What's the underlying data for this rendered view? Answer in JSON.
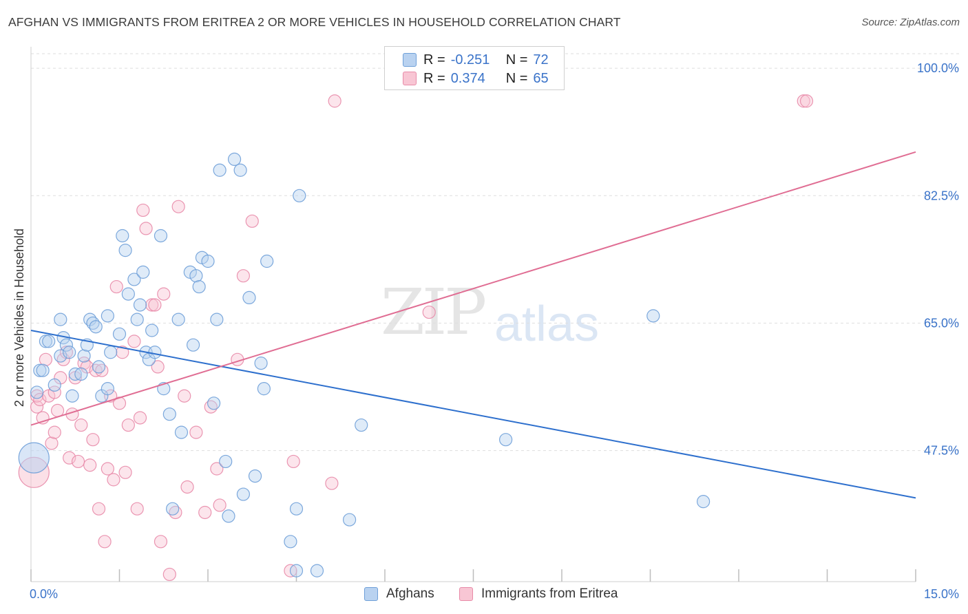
{
  "title": "AFGHAN VS IMMIGRANTS FROM ERITREA 2 OR MORE VEHICLES IN HOUSEHOLD CORRELATION CHART",
  "source": "Source: ZipAtlas.com",
  "watermark": {
    "zip": "ZIP",
    "atlas": "atlas"
  },
  "legend_top": {
    "rows": [
      {
        "r_label": "R =",
        "r_value": "-0.251",
        "n_label": "N =",
        "n_value": "72"
      },
      {
        "r_label": "R =",
        "r_value": "0.374",
        "n_label": "N =",
        "n_value": "65"
      }
    ]
  },
  "legend_bottom": {
    "series1": "Afghans",
    "series2": "Immigrants from Eritrea"
  },
  "colors": {
    "blue_fill": "#b9d2f0",
    "blue_stroke": "#6e9fd8",
    "blue_line": "#2d6fcd",
    "pink_fill": "#f8c6d4",
    "pink_stroke": "#e88aa8",
    "pink_line": "#e06d93",
    "tick_label": "#3a73c9",
    "grid": "#dedede"
  },
  "chart_data": {
    "type": "scatter",
    "title": "AFGHAN VS IMMIGRANTS FROM ERITREA 2 OR MORE VEHICLES IN HOUSEHOLD CORRELATION CHART",
    "xlabel": "",
    "ylabel": "2 or more Vehicles in Household",
    "xlim": [
      0,
      15
    ],
    "ylim": [
      29.5,
      102
    ],
    "x_tick_labels": [
      "0.0%",
      "15.0%"
    ],
    "y_ticks": [
      47.5,
      65.0,
      82.5,
      100.0
    ],
    "y_tick_labels": [
      "47.5%",
      "65.0%",
      "82.5%",
      "100.0%"
    ],
    "grid": true,
    "legend_position": "top-center",
    "series": [
      {
        "name": "Afghans",
        "r": -0.251,
        "n": 72,
        "trend": {
          "x": [
            0.0,
            15.0
          ],
          "y": [
            64.0,
            41.0
          ]
        },
        "points": [
          [
            0.05,
            46.5
          ],
          [
            0.1,
            55.5
          ],
          [
            0.15,
            58.5
          ],
          [
            0.2,
            58.5
          ],
          [
            0.25,
            62.5
          ],
          [
            0.3,
            62.5
          ],
          [
            0.4,
            56.5
          ],
          [
            0.5,
            60.5
          ],
          [
            0.5,
            65.5
          ],
          [
            0.55,
            63.0
          ],
          [
            0.6,
            62.0
          ],
          [
            0.65,
            61.0
          ],
          [
            0.7,
            55.0
          ],
          [
            0.75,
            58.0
          ],
          [
            0.85,
            58.0
          ],
          [
            0.9,
            60.5
          ],
          [
            0.95,
            62.0
          ],
          [
            1.0,
            65.5
          ],
          [
            1.05,
            65.0
          ],
          [
            1.1,
            64.5
          ],
          [
            1.15,
            59.0
          ],
          [
            1.2,
            55.0
          ],
          [
            1.3,
            56.0
          ],
          [
            1.3,
            66.0
          ],
          [
            1.35,
            61.0
          ],
          [
            1.5,
            63.5
          ],
          [
            1.55,
            77.0
          ],
          [
            1.6,
            75.0
          ],
          [
            1.65,
            69.0
          ],
          [
            1.75,
            71.0
          ],
          [
            1.8,
            65.5
          ],
          [
            1.85,
            67.5
          ],
          [
            1.9,
            72.0
          ],
          [
            1.95,
            61.0
          ],
          [
            2.0,
            60.0
          ],
          [
            2.05,
            64.0
          ],
          [
            2.1,
            61.0
          ],
          [
            2.2,
            77.0
          ],
          [
            2.25,
            56.0
          ],
          [
            2.35,
            52.5
          ],
          [
            2.4,
            39.5
          ],
          [
            2.5,
            65.5
          ],
          [
            2.55,
            50.0
          ],
          [
            2.7,
            72.0
          ],
          [
            2.75,
            62.0
          ],
          [
            2.8,
            71.5
          ],
          [
            2.85,
            70.0
          ],
          [
            2.9,
            74.0
          ],
          [
            3.0,
            73.5
          ],
          [
            3.1,
            54.0
          ],
          [
            3.15,
            65.5
          ],
          [
            3.2,
            86.0
          ],
          [
            3.3,
            46.0
          ],
          [
            3.35,
            38.5
          ],
          [
            3.45,
            87.5
          ],
          [
            3.55,
            86.0
          ],
          [
            3.6,
            41.5
          ],
          [
            3.7,
            68.5
          ],
          [
            3.8,
            44.0
          ],
          [
            3.9,
            59.5
          ],
          [
            3.95,
            56.0
          ],
          [
            4.0,
            73.5
          ],
          [
            4.4,
            35.0
          ],
          [
            4.5,
            39.5
          ],
          [
            4.5,
            31.0
          ],
          [
            4.55,
            82.5
          ],
          [
            4.85,
            31.0
          ],
          [
            5.4,
            38.0
          ],
          [
            5.6,
            51.0
          ],
          [
            8.05,
            49.0
          ],
          [
            10.55,
            66.0
          ],
          [
            11.4,
            40.5
          ]
        ]
      },
      {
        "name": "Immigrants from Eritrea",
        "r": 0.374,
        "n": 65,
        "trend": {
          "x": [
            0.0,
            15.0
          ],
          "y": [
            51.0,
            88.5
          ]
        },
        "points": [
          [
            0.05,
            44.5
          ],
          [
            0.1,
            53.5
          ],
          [
            0.1,
            55.0
          ],
          [
            0.15,
            54.5
          ],
          [
            0.2,
            52.0
          ],
          [
            0.25,
            60.0
          ],
          [
            0.3,
            55.0
          ],
          [
            0.35,
            48.5
          ],
          [
            0.4,
            55.5
          ],
          [
            0.4,
            50.0
          ],
          [
            0.45,
            53.0
          ],
          [
            0.5,
            57.5
          ],
          [
            0.55,
            60.0
          ],
          [
            0.6,
            61.0
          ],
          [
            0.65,
            46.5
          ],
          [
            0.7,
            52.5
          ],
          [
            0.75,
            57.5
          ],
          [
            0.8,
            46.0
          ],
          [
            0.85,
            51.0
          ],
          [
            0.9,
            59.5
          ],
          [
            0.95,
            59.0
          ],
          [
            1.0,
            45.5
          ],
          [
            1.05,
            49.0
          ],
          [
            1.1,
            58.5
          ],
          [
            1.15,
            39.5
          ],
          [
            1.2,
            58.5
          ],
          [
            1.25,
            35.0
          ],
          [
            1.3,
            45.0
          ],
          [
            1.35,
            55.0
          ],
          [
            1.4,
            43.5
          ],
          [
            1.45,
            70.0
          ],
          [
            1.5,
            54.0
          ],
          [
            1.55,
            61.0
          ],
          [
            1.6,
            44.5
          ],
          [
            1.65,
            51.0
          ],
          [
            1.75,
            62.5
          ],
          [
            1.8,
            39.5
          ],
          [
            1.85,
            52.0
          ],
          [
            1.9,
            80.5
          ],
          [
            1.95,
            78.0
          ],
          [
            2.05,
            67.5
          ],
          [
            2.1,
            67.5
          ],
          [
            2.15,
            59.0
          ],
          [
            2.2,
            35.0
          ],
          [
            2.25,
            69.0
          ],
          [
            2.35,
            30.5
          ],
          [
            2.45,
            39.0
          ],
          [
            2.5,
            81.0
          ],
          [
            2.6,
            55.0
          ],
          [
            2.65,
            42.5
          ],
          [
            2.8,
            50.0
          ],
          [
            2.95,
            39.0
          ],
          [
            3.05,
            53.5
          ],
          [
            3.15,
            45.0
          ],
          [
            3.2,
            40.0
          ],
          [
            3.5,
            60.0
          ],
          [
            3.6,
            71.5
          ],
          [
            3.75,
            79.0
          ],
          [
            4.4,
            31.0
          ],
          [
            4.45,
            46.0
          ],
          [
            5.1,
            43.0
          ],
          [
            5.15,
            95.5
          ],
          [
            6.75,
            66.5
          ],
          [
            13.1,
            95.5
          ],
          [
            13.15,
            95.5
          ]
        ]
      }
    ]
  }
}
